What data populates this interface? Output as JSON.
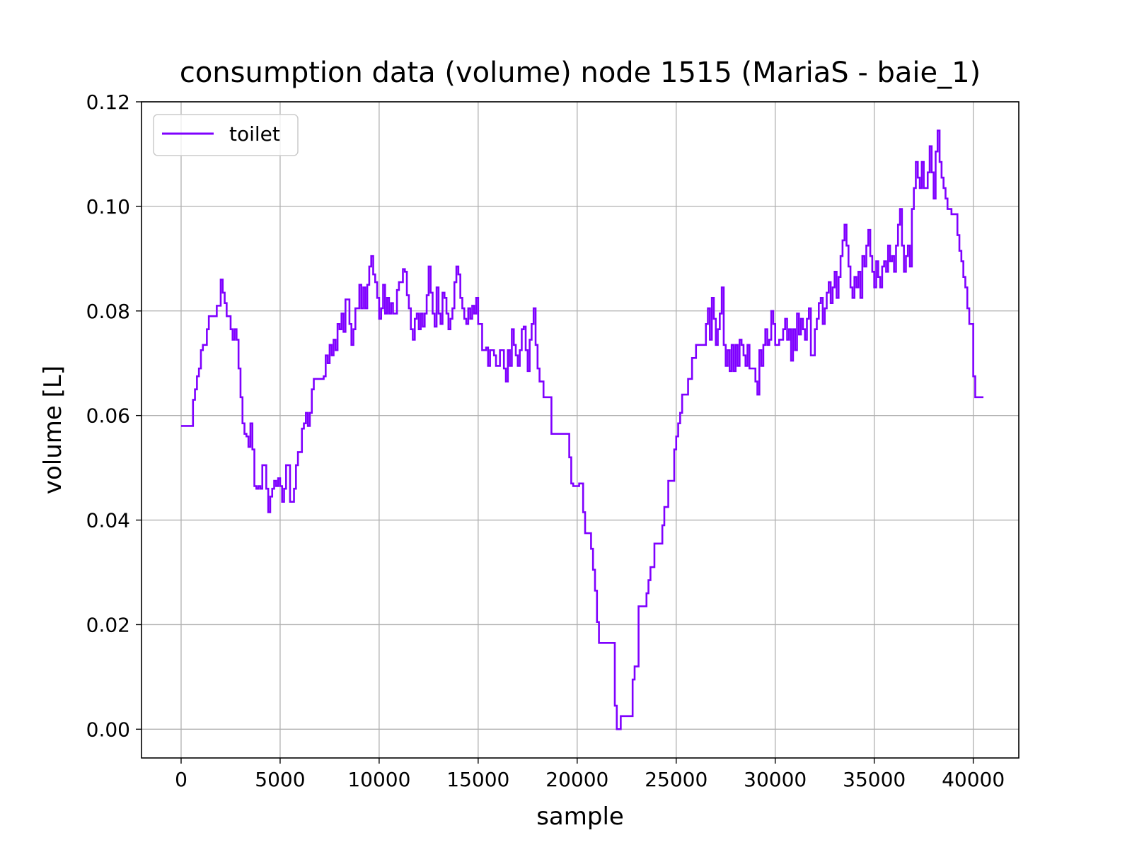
{
  "chart_data": {
    "type": "line",
    "title": "consumption data (volume) node 1515 (MariaS - baie_1)",
    "xlabel": "sample",
    "ylabel": "volume [L]",
    "xlim": [
      -2000,
      42300
    ],
    "ylim": [
      -0.0055,
      0.12
    ],
    "x_ticks": [
      0,
      5000,
      10000,
      15000,
      20000,
      25000,
      30000,
      35000,
      40000
    ],
    "x_tick_labels": [
      "0",
      "5000",
      "10000",
      "15000",
      "20000",
      "25000",
      "30000",
      "35000",
      "40000"
    ],
    "y_ticks": [
      0.0,
      0.02,
      0.04,
      0.06,
      0.08,
      0.1,
      0.12
    ],
    "y_tick_labels": [
      "0.00",
      "0.02",
      "0.04",
      "0.06",
      "0.08",
      "0.10",
      "0.12"
    ],
    "grid": true,
    "legend_position": "upper left",
    "series": [
      {
        "name": "toilet",
        "color": "#7f00ff",
        "step": true,
        "x": [
          0,
          600,
          700,
          800,
          900,
          1000,
          1100,
          1300,
          1400,
          1500,
          1600,
          1700,
          1800,
          2000,
          2100,
          2200,
          2300,
          2500,
          2600,
          2700,
          2800,
          2900,
          3000,
          3100,
          3200,
          3300,
          3400,
          3500,
          3600,
          3700,
          3800,
          3900,
          4000,
          4100,
          4300,
          4400,
          4500,
          4600,
          4700,
          4800,
          4900,
          5000,
          5100,
          5200,
          5300,
          5400,
          5500,
          5600,
          5700,
          5800,
          5900,
          6100,
          6200,
          6300,
          6400,
          6500,
          6600,
          6700,
          6800,
          6900,
          7000,
          7100,
          7200,
          7300,
          7400,
          7500,
          7600,
          7700,
          7800,
          7900,
          8000,
          8100,
          8200,
          8300,
          8400,
          8500,
          8600,
          8700,
          8800,
          9000,
          9100,
          9200,
          9300,
          9400,
          9500,
          9600,
          9700,
          9800,
          9900,
          10000,
          10100,
          10200,
          10300,
          10400,
          10500,
          10600,
          10700,
          10800,
          10900,
          11000,
          11100,
          11200,
          11300,
          11400,
          11500,
          11600,
          11700,
          11800,
          11900,
          12000,
          12100,
          12200,
          12300,
          12400,
          12500,
          12600,
          12700,
          12800,
          12900,
          13000,
          13100,
          13200,
          13300,
          13400,
          13500,
          13600,
          13700,
          13800,
          13900,
          14000,
          14100,
          14200,
          14300,
          14400,
          14500,
          14600,
          14700,
          14800,
          14900,
          15000,
          15200,
          15400,
          15500,
          15600,
          15700,
          15800,
          15900,
          16000,
          16100,
          16300,
          16400,
          16500,
          16600,
          16700,
          16800,
          16900,
          17000,
          17100,
          17200,
          17300,
          17400,
          17500,
          17600,
          17700,
          17800,
          17900,
          18000,
          18100,
          18300,
          18500,
          18700,
          19000,
          19300,
          19600,
          19700,
          19800,
          20100,
          20300,
          20400,
          20500,
          20700,
          20800,
          20900,
          21000,
          21100,
          21200,
          21300,
          21800,
          21900,
          22000,
          22100,
          22200,
          22800,
          22900,
          23000,
          23100,
          23500,
          23600,
          23700,
          23800,
          23900,
          24000,
          24300,
          24400,
          24500,
          24600,
          24900,
          25000,
          25100,
          25200,
          25300,
          25400,
          25500,
          25600,
          25800,
          25900,
          26000,
          26500,
          26600,
          26700,
          26800,
          26900,
          27000,
          27100,
          27200,
          27300,
          27400,
          27500,
          27600,
          27700,
          27800,
          27900,
          28000,
          28100,
          28200,
          28300,
          28400,
          28500,
          28600,
          28700,
          29000,
          29100,
          29200,
          29300,
          29400,
          29500,
          29600,
          29700,
          29800,
          29900,
          30000,
          30200,
          30400,
          30500,
          30600,
          30700,
          30800,
          30900,
          31000,
          31100,
          31200,
          31300,
          31400,
          31500,
          31600,
          31700,
          31800,
          32000,
          32100,
          32200,
          32300,
          32400,
          32500,
          32600,
          32700,
          32800,
          32900,
          33000,
          33100,
          33200,
          33300,
          33400,
          33500,
          33600,
          33700,
          33800,
          33900,
          34000,
          34100,
          34200,
          34300,
          34400,
          34500,
          34600,
          34700,
          34800,
          34900,
          35000,
          35100,
          35200,
          35300,
          35400,
          35500,
          35600,
          35700,
          35800,
          35900,
          36000,
          36100,
          36200,
          36300,
          36400,
          36500,
          36600,
          36700,
          36800,
          36900,
          37000,
          37100,
          37200,
          37300,
          37400,
          37500,
          37600,
          37700,
          37800,
          37900,
          38000,
          38100,
          38200,
          38300,
          38400,
          38500,
          38600,
          38700,
          38900,
          39000,
          39200,
          39300,
          39400,
          39500,
          39600,
          39700,
          39800,
          39900,
          40000,
          40100,
          40200,
          40300
        ],
        "y": [
          0.058,
          0.063,
          0.065,
          0.0675,
          0.069,
          0.0725,
          0.0735,
          0.0765,
          0.079,
          0.079,
          0.079,
          0.079,
          0.081,
          0.086,
          0.0835,
          0.0815,
          0.079,
          0.0765,
          0.0745,
          0.0765,
          0.0745,
          0.069,
          0.0635,
          0.0585,
          0.0565,
          0.056,
          0.054,
          0.0585,
          0.0535,
          0.0465,
          0.046,
          0.0465,
          0.046,
          0.0505,
          0.046,
          0.0415,
          0.0445,
          0.046,
          0.0475,
          0.0465,
          0.048,
          0.0465,
          0.0435,
          0.046,
          0.0505,
          0.0505,
          0.0435,
          0.0435,
          0.046,
          0.0505,
          0.053,
          0.0575,
          0.0585,
          0.0605,
          0.058,
          0.0605,
          0.065,
          0.067,
          0.067,
          0.067,
          0.067,
          0.067,
          0.0675,
          0.0715,
          0.07,
          0.0735,
          0.0715,
          0.0745,
          0.0725,
          0.0775,
          0.0765,
          0.0795,
          0.076,
          0.0822,
          0.0822,
          0.0775,
          0.0735,
          0.0765,
          0.0805,
          0.085,
          0.0805,
          0.0845,
          0.0805,
          0.085,
          0.0885,
          0.0905,
          0.087,
          0.0855,
          0.0825,
          0.0785,
          0.0805,
          0.085,
          0.0795,
          0.0825,
          0.0795,
          0.0815,
          0.0795,
          0.0795,
          0.084,
          0.0855,
          0.0855,
          0.088,
          0.0875,
          0.083,
          0.0805,
          0.0765,
          0.0745,
          0.0785,
          0.0795,
          0.0765,
          0.0795,
          0.077,
          0.0795,
          0.083,
          0.0885,
          0.0835,
          0.0795,
          0.077,
          0.0845,
          0.0795,
          0.0775,
          0.0835,
          0.0825,
          0.0795,
          0.0765,
          0.0785,
          0.0805,
          0.0855,
          0.0885,
          0.087,
          0.0825,
          0.0805,
          0.0785,
          0.0775,
          0.0805,
          0.0785,
          0.081,
          0.0795,
          0.0825,
          0.0775,
          0.0725,
          0.073,
          0.0695,
          0.0725,
          0.0725,
          0.0715,
          0.0695,
          0.0695,
          0.0725,
          0.069,
          0.0665,
          0.0725,
          0.0695,
          0.0765,
          0.0735,
          0.0715,
          0.0695,
          0.0725,
          0.0765,
          0.077,
          0.0725,
          0.0685,
          0.0745,
          0.0775,
          0.0805,
          0.0735,
          0.069,
          0.0665,
          0.0635,
          0.0635,
          0.0565,
          0.0565,
          0.0565,
          0.052,
          0.047,
          0.0465,
          0.047,
          0.0415,
          0.0375,
          0.0375,
          0.0345,
          0.0305,
          0.0265,
          0.0205,
          0.0165,
          0.0165,
          0.0165,
          0.0165,
          0.0045,
          0.0,
          0.0,
          0.0025,
          0.0095,
          0.012,
          0.012,
          0.0235,
          0.026,
          0.0285,
          0.031,
          0.031,
          0.0355,
          0.0355,
          0.039,
          0.0425,
          0.0425,
          0.0475,
          0.0535,
          0.056,
          0.0585,
          0.0605,
          0.064,
          0.064,
          0.064,
          0.067,
          0.071,
          0.071,
          0.0735,
          0.0775,
          0.0805,
          0.0745,
          0.0825,
          0.0785,
          0.0735,
          0.0765,
          0.0795,
          0.0845,
          0.0735,
          0.0695,
          0.0725,
          0.0685,
          0.0735,
          0.0685,
          0.0735,
          0.0695,
          0.0745,
          0.0735,
          0.0715,
          0.0695,
          0.0735,
          0.069,
          0.0665,
          0.064,
          0.0725,
          0.0695,
          0.0735,
          0.0765,
          0.0735,
          0.0745,
          0.08,
          0.0775,
          0.0735,
          0.0745,
          0.0765,
          0.0785,
          0.0745,
          0.0765,
          0.0705,
          0.0765,
          0.0725,
          0.0795,
          0.0755,
          0.0785,
          0.0765,
          0.0745,
          0.0785,
          0.0805,
          0.0715,
          0.0765,
          0.0785,
          0.0815,
          0.0825,
          0.0775,
          0.0805,
          0.0835,
          0.0855,
          0.0815,
          0.0845,
          0.0875,
          0.0825,
          0.0865,
          0.0905,
          0.0935,
          0.0965,
          0.0925,
          0.0885,
          0.0845,
          0.0825,
          0.0865,
          0.0845,
          0.0875,
          0.0825,
          0.0905,
          0.0885,
          0.0925,
          0.0955,
          0.0905,
          0.0875,
          0.0845,
          0.0895,
          0.0865,
          0.0845,
          0.0885,
          0.0895,
          0.0875,
          0.0925,
          0.0895,
          0.0905,
          0.0875,
          0.0925,
          0.0965,
          0.0995,
          0.0925,
          0.0875,
          0.0905,
          0.0925,
          0.0885,
          0.0995,
          0.1035,
          0.1085,
          0.1055,
          0.1035,
          0.1085,
          0.1035,
          0.1035,
          0.1065,
          0.1115,
          0.1065,
          0.1015,
          0.1105,
          0.1145,
          0.1085,
          0.1055,
          0.1035,
          0.1015,
          0.0995,
          0.0985,
          0.0985,
          0.0945,
          0.0915,
          0.0895,
          0.0865,
          0.0845,
          0.0805,
          0.0775,
          0.0775,
          0.0675,
          0.0635,
          0.0635,
          0.0635
        ]
      }
    ]
  }
}
